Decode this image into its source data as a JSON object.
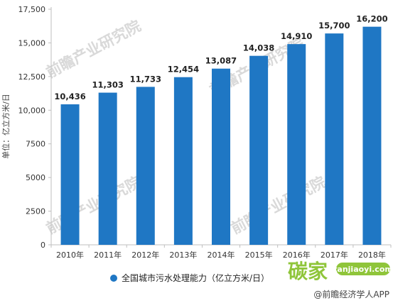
{
  "chart_data": {
    "type": "bar",
    "categories": [
      "2010年",
      "2011年",
      "2012年",
      "2013年",
      "2014年",
      "2015年",
      "2016年",
      "2017年",
      "2018年"
    ],
    "values": [
      10436,
      11303,
      11733,
      12454,
      13087,
      14038,
      14910,
      15700,
      16200
    ],
    "data_labels": [
      "10,436",
      "11,303",
      "11,733",
      "12,454",
      "13,087",
      "14,038",
      "14,910",
      "15,700",
      "16,200"
    ],
    "ylim": [
      0,
      17500
    ],
    "yticks": [
      0,
      2500,
      5000,
      7500,
      10000,
      12500,
      15000,
      17500
    ],
    "ytick_labels": [
      "0",
      "2500",
      "5000",
      "7500",
      "10,000",
      "12,500",
      "15,000",
      "17,500"
    ],
    "ylabel": "单位：亿立方米/日",
    "xlabel": "",
    "title": "",
    "grid": false,
    "legend": {
      "position": "bottom",
      "entries": [
        "全国城市污水处理能力（亿立方米/日）"
      ]
    },
    "series_color": "#1f77c4"
  },
  "watermark": {
    "text": "前瞻产业研究院",
    "color": "#d9d9d9"
  },
  "branding": {
    "site_logo": "碳家",
    "site_url": "tanjiaoyi.com",
    "site_text": "@前瞻经济学人APP",
    "logo_color": "#8fc53a"
  }
}
